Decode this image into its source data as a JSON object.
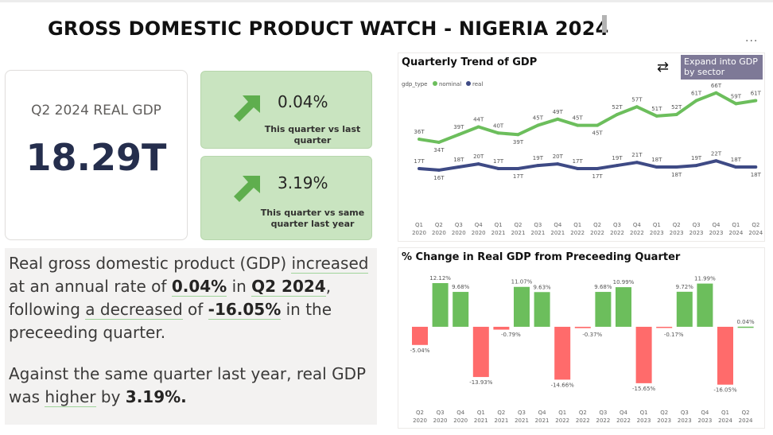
{
  "header": {
    "title": "GROSS DOMESTIC PRODUCT WATCH - NIGERIA 2024",
    "more_label": "..."
  },
  "kpi_main": {
    "label": "Q2 2024 REAL GDP",
    "value": "18.29T"
  },
  "kpi_qoq": {
    "value": "0.04%",
    "subtitle": "This quarter vs last quarter",
    "icon": "up-right-arrow-icon"
  },
  "kpi_yoy": {
    "value": "3.19%",
    "subtitle": "This quarter vs same quarter last year",
    "icon": "up-right-arrow-icon"
  },
  "narrative": {
    "p1_a": "Real gross domestic product (GDP) ",
    "p1_b": "increased",
    "p1_c": " at an annual rate of ",
    "p1_d": "0.04%",
    "p1_e": " in ",
    "p1_f": "Q2 2024",
    "p1_g": ", following ",
    "p1_h": "a decreased",
    "p1_i": " of ",
    "p1_j": "-16.05%",
    "p1_k": " in the preceeding quarter.",
    "p2_a": "Against the same quarter last year, real GDP was ",
    "p2_b": "higher",
    "p2_c": " by ",
    "p2_d": "3.19%."
  },
  "trend_panel": {
    "title": "Quarterly Trend of GDP",
    "expand_button": "Expand into GDP by sector",
    "refresh_icon": "refresh-icon"
  },
  "change_panel": {
    "title": "% Change in Real GDP from Preceeding Quarter"
  },
  "colors": {
    "nominal": "#6cbe5c",
    "real": "#3e4a85",
    "positive": "#6cbe5c",
    "negative": "#ff6b6b",
    "kpi_card": "#c9e4c0"
  },
  "chart_data": [
    {
      "type": "line",
      "title": "Quarterly Trend of GDP",
      "legend_title": "gdp_type",
      "legend_position": "top-left",
      "categories": [
        "Q1 2020",
        "Q2 2020",
        "Q3 2020",
        "Q4 2020",
        "Q1 2021",
        "Q2 2021",
        "Q3 2021",
        "Q4 2021",
        "Q1 2022",
        "Q2 2022",
        "Q3 2022",
        "Q4 2022",
        "Q1 2023",
        "Q2 2023",
        "Q3 2023",
        "Q4 2023",
        "Q1 2024",
        "Q2 2024"
      ],
      "x_top": [
        "Q1",
        "Q2",
        "Q3",
        "Q4",
        "Q1",
        "Q2",
        "Q3",
        "Q4",
        "Q1",
        "Q2",
        "Q3",
        "Q4",
        "Q1",
        "Q2",
        "Q3",
        "Q4",
        "Q1",
        "Q2"
      ],
      "x_bottom": [
        "2020",
        "2020",
        "2020",
        "2020",
        "2021",
        "2021",
        "2021",
        "2021",
        "2022",
        "2022",
        "2022",
        "2022",
        "2023",
        "2023",
        "2023",
        "2023",
        "2024",
        "2024"
      ],
      "series": [
        {
          "name": "nominal",
          "values": [
            36,
            34,
            39,
            44,
            40,
            39,
            45,
            49,
            45,
            45,
            52,
            57,
            51,
            52,
            61,
            66,
            59,
            61
          ],
          "labels": [
            "36T",
            "34T",
            "39T",
            "44T",
            "40T",
            "39T",
            "45T",
            "49T",
            "45T",
            "45T",
            "52T",
            "57T",
            "51T",
            "52T",
            "61T",
            "66T",
            "59T",
            "61T"
          ]
        },
        {
          "name": "real",
          "values": [
            17,
            16,
            18,
            20,
            17,
            17,
            19,
            20,
            17,
            17,
            19,
            21,
            18,
            18,
            19,
            22,
            18,
            18
          ],
          "labels": [
            "17T",
            "16T",
            "18T",
            "20T",
            "17T",
            "17T",
            "19T",
            "20T",
            "17T",
            "17T",
            "19T",
            "21T",
            "18T",
            "18T",
            "19T",
            "22T",
            "18T",
            "18T"
          ]
        }
      ],
      "ylim": [
        0,
        70
      ]
    },
    {
      "type": "bar",
      "title": "% Change in Real GDP from Preceeding Quarter",
      "categories": [
        "Q2 2020",
        "Q3 2020",
        "Q4 2020",
        "Q1 2021",
        "Q2 2021",
        "Q3 2021",
        "Q4 2021",
        "Q1 2022",
        "Q2 2022",
        "Q3 2022",
        "Q4 2022",
        "Q1 2023",
        "Q2 2023",
        "Q3 2023",
        "Q4 2023",
        "Q1 2024",
        "Q2 2024"
      ],
      "x_top": [
        "Q2",
        "Q3",
        "Q4",
        "Q1",
        "Q2",
        "Q3",
        "Q4",
        "Q1",
        "Q2",
        "Q3",
        "Q4",
        "Q1",
        "Q2",
        "Q3",
        "Q4",
        "Q1",
        "Q2"
      ],
      "x_bottom": [
        "2020",
        "2020",
        "2020",
        "2021",
        "2021",
        "2021",
        "2021",
        "2022",
        "2022",
        "2022",
        "2022",
        "2023",
        "2023",
        "2023",
        "2023",
        "2024",
        "2024"
      ],
      "values": [
        -5.04,
        12.12,
        9.68,
        -13.93,
        -0.79,
        11.07,
        9.63,
        -14.66,
        -0.37,
        9.68,
        10.99,
        -15.65,
        -0.17,
        9.72,
        11.99,
        -16.05,
        0.04
      ],
      "labels": [
        "-5.04%",
        "12.12%",
        "9.68%",
        "-13.93%",
        "-0.79%",
        "11.07%",
        "9.63%",
        "-14.66%",
        "-0.37%",
        "9.68%",
        "10.99%",
        "-15.65%",
        "-0.17%",
        "9.72%",
        "11.99%",
        "-16.05%",
        "0.04%"
      ],
      "ylim": [
        -17,
        13
      ]
    }
  ]
}
